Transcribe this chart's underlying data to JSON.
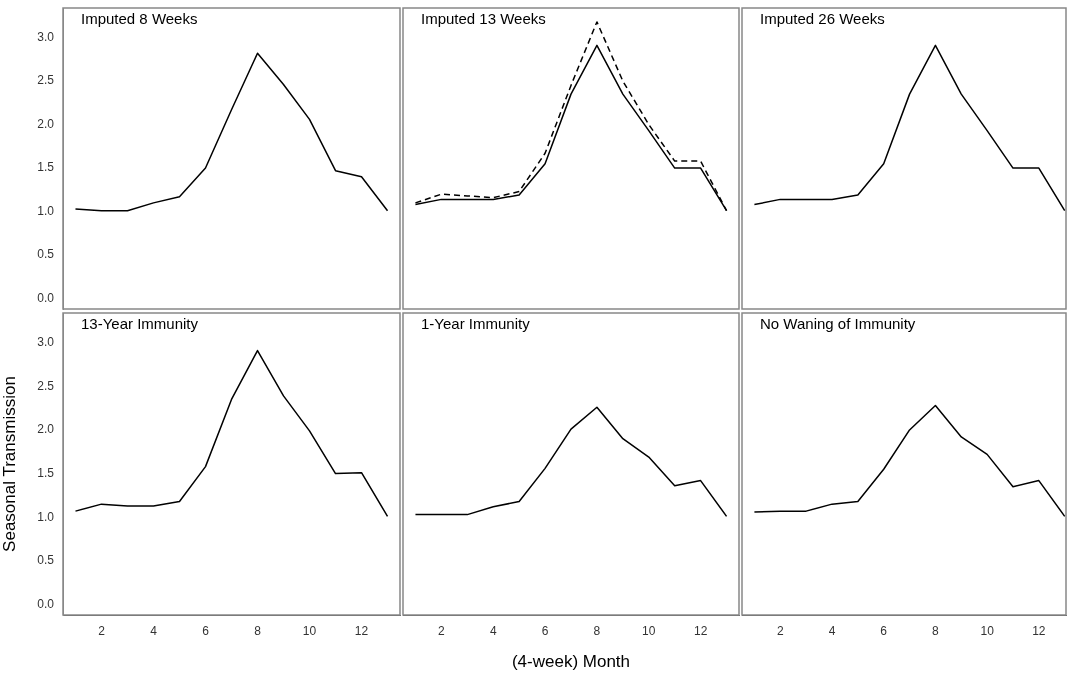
{
  "chart_data": [
    {
      "type": "line",
      "title": "Imputed 8 Weeks",
      "x": [
        1,
        2,
        3,
        4,
        5,
        6,
        7,
        8,
        9,
        10,
        11,
        12,
        13
      ],
      "xlim": [
        0.52,
        13.48
      ],
      "ylim": [
        -0.12,
        3.34
      ],
      "yticks": [
        {
          "value": 0,
          "label": "0.0"
        },
        {
          "value": 0.5,
          "label": "0.5"
        },
        {
          "value": 1,
          "label": "1.0"
        },
        {
          "value": 1.5,
          "label": "1.5"
        },
        {
          "value": 2,
          "label": "2.0"
        },
        {
          "value": 2.5,
          "label": "2.5"
        },
        {
          "value": 3,
          "label": "3.0"
        }
      ],
      "tick_labels": "y",
      "grid": false,
      "marker": "none",
      "series": [
        {
          "color": "#000000",
          "line_style": "solid",
          "values": [
            1.03,
            1.01,
            1.01,
            1.1,
            1.17,
            1.5,
            2.17,
            2.82,
            2.46,
            2.06,
            1.47,
            1.4,
            1.01
          ]
        }
      ]
    },
    {
      "type": "line",
      "title": "Imputed 13 Weeks",
      "x": [
        1,
        2,
        3,
        4,
        5,
        6,
        7,
        8,
        9,
        10,
        11,
        12,
        13
      ],
      "xlim": [
        0.52,
        13.48
      ],
      "ylim": [
        -0.12,
        3.34
      ],
      "tick_labels": false,
      "grid": false,
      "marker": "none",
      "series": [
        {
          "color": "#000000",
          "line_style": "dashed",
          "values": [
            1.1,
            1.2,
            1.18,
            1.16,
            1.23,
            1.67,
            2.45,
            3.18,
            2.5,
            2.0,
            1.58,
            1.58,
            1.01
          ]
        },
        {
          "color": "#000000",
          "line_style": "solid",
          "values": [
            1.08,
            1.14,
            1.14,
            1.14,
            1.19,
            1.55,
            2.35,
            2.91,
            2.35,
            1.93,
            1.5,
            1.5,
            1.01
          ]
        }
      ]
    },
    {
      "type": "line",
      "title": "Imputed 26 Weeks",
      "x": [
        1,
        2,
        3,
        4,
        5,
        6,
        7,
        8,
        9,
        10,
        11,
        12,
        13
      ],
      "xlim": [
        0.52,
        13.05
      ],
      "ylim": [
        -0.12,
        3.34
      ],
      "tick_labels": false,
      "grid": false,
      "marker": "none",
      "series": [
        {
          "color": "#000000",
          "line_style": "solid",
          "values": [
            1.08,
            1.14,
            1.14,
            1.14,
            1.19,
            1.55,
            2.35,
            2.91,
            2.35,
            1.93,
            1.5,
            1.5,
            1.01
          ]
        }
      ]
    },
    {
      "type": "line",
      "title": "13-Year Immunity",
      "ylabel": "Seasonal Transmission",
      "x": [
        1,
        2,
        3,
        4,
        5,
        6,
        7,
        8,
        9,
        10,
        11,
        12,
        13
      ],
      "xlim": [
        0.52,
        13.48
      ],
      "xticks": [
        2,
        4,
        6,
        8,
        10,
        12
      ],
      "ylim": [
        -0.12,
        3.34
      ],
      "yticks": [
        {
          "value": 0,
          "label": "0.0"
        },
        {
          "value": 0.5,
          "label": "0.5"
        },
        {
          "value": 1,
          "label": "1.0"
        },
        {
          "value": 1.5,
          "label": "1.5"
        },
        {
          "value": 2,
          "label": "2.0"
        },
        {
          "value": 2.5,
          "label": "2.5"
        },
        {
          "value": 3,
          "label": "3.0"
        }
      ],
      "grid": false,
      "marker": "none",
      "series": [
        {
          "color": "#000000",
          "line_style": "solid",
          "values": [
            1.07,
            1.15,
            1.13,
            1.13,
            1.18,
            1.58,
            2.35,
            2.91,
            2.39,
            1.99,
            1.5,
            1.51,
            1.01
          ]
        }
      ]
    },
    {
      "type": "line",
      "title": "1-Year Immunity",
      "xlabel": "(4-week) Month",
      "x": [
        1,
        2,
        3,
        4,
        5,
        6,
        7,
        8,
        9,
        10,
        11,
        12,
        13
      ],
      "xlim": [
        0.52,
        13.48
      ],
      "xticks": [
        2,
        4,
        6,
        8,
        10,
        12
      ],
      "ylim": [
        -0.12,
        3.34
      ],
      "tick_labels": "x",
      "grid": false,
      "marker": "none",
      "series": [
        {
          "color": "#000000",
          "line_style": "solid",
          "values": [
            1.03,
            1.03,
            1.03,
            1.12,
            1.18,
            1.56,
            2.01,
            2.26,
            1.9,
            1.69,
            1.36,
            1.42,
            1.01
          ]
        }
      ]
    },
    {
      "type": "line",
      "title": "No Waning of Immunity",
      "x": [
        1,
        2,
        3,
        4,
        5,
        6,
        7,
        8,
        9,
        10,
        11,
        12,
        13
      ],
      "xlim": [
        0.52,
        13.05
      ],
      "xticks": [
        2,
        4,
        6,
        8,
        10,
        12
      ],
      "ylim": [
        -0.12,
        3.34
      ],
      "tick_labels": "x",
      "grid": false,
      "marker": "none",
      "series": [
        {
          "color": "#000000",
          "line_style": "solid",
          "values": [
            1.06,
            1.07,
            1.07,
            1.15,
            1.18,
            1.55,
            2.0,
            2.28,
            1.92,
            1.72,
            1.35,
            1.42,
            1.01
          ]
        }
      ]
    }
  ]
}
